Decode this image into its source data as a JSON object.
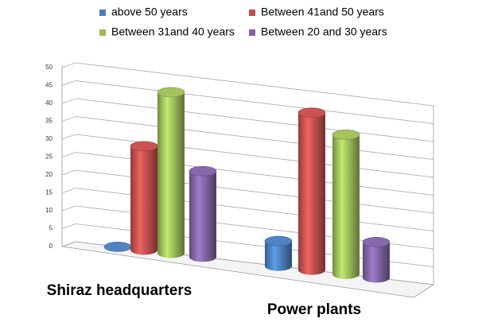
{
  "chart_data": {
    "type": "bar3d",
    "categories": [
      "Shiraz headquarters",
      "Power plants"
    ],
    "series": [
      {
        "name": "above 50 years",
        "color": "#4a7ebb",
        "values": [
          0,
          7
        ]
      },
      {
        "name": "Between 41and 50 years",
        "color": "#c0504d",
        "values": [
          29,
          44
        ]
      },
      {
        "name": "Between 31and 40 years",
        "color": "#9bbb59",
        "values": [
          45,
          39
        ]
      },
      {
        "name": "Between 20 and 30 years",
        "color": "#8064a2",
        "values": [
          24,
          10
        ]
      }
    ],
    "ylim": [
      0,
      50
    ],
    "yticks": [
      0,
      5,
      10,
      15,
      20,
      25,
      30,
      35,
      40,
      45,
      50
    ],
    "grid": true
  }
}
